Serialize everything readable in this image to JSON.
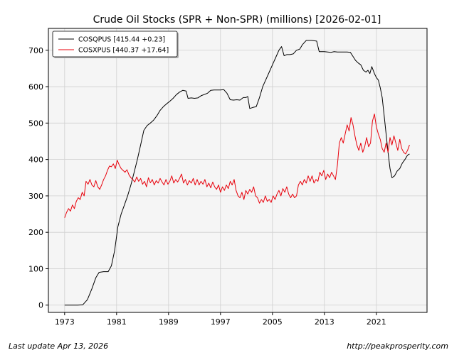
{
  "footer": {
    "last_update": "Last update Apr 13, 2026",
    "source_url": "http://peakprosperity.com"
  },
  "chart_data": {
    "type": "line",
    "title": "Crude Oil Stocks (SPR + Non-SPR) (millions) [2026-02-01]",
    "xlabel": "",
    "ylabel": "",
    "xlim": [
      1970.5,
      2028.8
    ],
    "ylim": [
      -20,
      760
    ],
    "x_ticks": [
      1973,
      1981,
      1989,
      1997,
      2005,
      2013,
      2021
    ],
    "y_ticks": [
      0,
      100,
      200,
      300,
      400,
      500,
      600,
      700
    ],
    "grid": true,
    "legend_position": "top-left",
    "colors": {
      "plot_background": "#f5f5f5",
      "grid": "#d0d0d0"
    },
    "series": [
      {
        "name": "COSQPUS [415.44 +0.23]",
        "color": "#000000",
        "points": [
          [
            1973.0,
            0
          ],
          [
            1975.0,
            0
          ],
          [
            1975.8,
            1
          ],
          [
            1976.5,
            15
          ],
          [
            1977.2,
            45
          ],
          [
            1977.8,
            75
          ],
          [
            1978.3,
            90
          ],
          [
            1979.0,
            92
          ],
          [
            1979.7,
            92
          ],
          [
            1980.2,
            108
          ],
          [
            1980.7,
            150
          ],
          [
            1981.2,
            215
          ],
          [
            1981.7,
            250
          ],
          [
            1982.2,
            275
          ],
          [
            1982.7,
            300
          ],
          [
            1983.2,
            330
          ],
          [
            1983.7,
            365
          ],
          [
            1984.2,
            400
          ],
          [
            1984.7,
            440
          ],
          [
            1985.2,
            480
          ],
          [
            1985.7,
            493
          ],
          [
            1986.2,
            500
          ],
          [
            1986.7,
            508
          ],
          [
            1987.2,
            520
          ],
          [
            1987.7,
            535
          ],
          [
            1988.2,
            545
          ],
          [
            1988.7,
            553
          ],
          [
            1989.2,
            560
          ],
          [
            1989.7,
            568
          ],
          [
            1990.2,
            578
          ],
          [
            1990.7,
            585
          ],
          [
            1991.2,
            590
          ],
          [
            1991.7,
            588
          ],
          [
            1992.0,
            568
          ],
          [
            1992.5,
            569
          ],
          [
            1993.0,
            568
          ],
          [
            1993.5,
            569
          ],
          [
            1994.0,
            575
          ],
          [
            1995.0,
            582
          ],
          [
            1995.5,
            590
          ],
          [
            1996.0,
            591
          ],
          [
            1997.0,
            591
          ],
          [
            1997.5,
            592
          ],
          [
            1998.0,
            582
          ],
          [
            1998.5,
            564
          ],
          [
            1999.0,
            563
          ],
          [
            1999.5,
            564
          ],
          [
            2000.0,
            563
          ],
          [
            2000.5,
            570
          ],
          [
            2000.9,
            570
          ],
          [
            2001.2,
            573
          ],
          [
            2001.5,
            540
          ],
          [
            2002.0,
            543
          ],
          [
            2002.5,
            545
          ],
          [
            2003.0,
            570
          ],
          [
            2003.5,
            600
          ],
          [
            2004.0,
            620
          ],
          [
            2004.5,
            640
          ],
          [
            2005.0,
            660
          ],
          [
            2005.5,
            680
          ],
          [
            2006.0,
            700
          ],
          [
            2006.4,
            710
          ],
          [
            2006.8,
            685
          ],
          [
            2007.2,
            688
          ],
          [
            2007.7,
            688
          ],
          [
            2008.2,
            690
          ],
          [
            2008.7,
            700
          ],
          [
            2009.2,
            703
          ],
          [
            2009.6,
            715
          ],
          [
            2010.2,
            727
          ],
          [
            2011.0,
            727
          ],
          [
            2011.8,
            725
          ],
          [
            2012.2,
            696
          ],
          [
            2013.0,
            696
          ],
          [
            2014.0,
            694
          ],
          [
            2014.5,
            696
          ],
          [
            2015.0,
            695
          ],
          [
            2016.0,
            695
          ],
          [
            2016.5,
            695
          ],
          [
            2017.0,
            694
          ],
          [
            2017.4,
            683
          ],
          [
            2017.8,
            672
          ],
          [
            2018.2,
            665
          ],
          [
            2018.6,
            660
          ],
          [
            2019.0,
            645
          ],
          [
            2019.4,
            640
          ],
          [
            2019.7,
            645
          ],
          [
            2020.0,
            636
          ],
          [
            2020.3,
            655
          ],
          [
            2020.7,
            636
          ],
          [
            2021.0,
            625
          ],
          [
            2021.3,
            618
          ],
          [
            2021.6,
            597
          ],
          [
            2021.9,
            570
          ],
          [
            2022.2,
            520
          ],
          [
            2022.5,
            470
          ],
          [
            2022.8,
            420
          ],
          [
            2023.1,
            375
          ],
          [
            2023.4,
            350
          ],
          [
            2023.8,
            355
          ],
          [
            2024.2,
            368
          ],
          [
            2024.6,
            375
          ],
          [
            2025.0,
            390
          ],
          [
            2025.4,
            400
          ],
          [
            2025.8,
            412
          ],
          [
            2026.1,
            415
          ]
        ]
      },
      {
        "name": "COSXPUS [440.37 +17.64]",
        "color": "#e8000b",
        "points": [
          [
            1973.0,
            240
          ],
          [
            1973.3,
            255
          ],
          [
            1973.6,
            265
          ],
          [
            1973.9,
            258
          ],
          [
            1974.2,
            275
          ],
          [
            1974.5,
            265
          ],
          [
            1974.8,
            285
          ],
          [
            1975.1,
            295
          ],
          [
            1975.4,
            290
          ],
          [
            1975.7,
            310
          ],
          [
            1976.0,
            300
          ],
          [
            1976.3,
            340
          ],
          [
            1976.6,
            332
          ],
          [
            1976.9,
            345
          ],
          [
            1977.2,
            330
          ],
          [
            1977.5,
            325
          ],
          [
            1977.8,
            342
          ],
          [
            1978.1,
            325
          ],
          [
            1978.4,
            318
          ],
          [
            1978.7,
            330
          ],
          [
            1979.0,
            345
          ],
          [
            1979.3,
            355
          ],
          [
            1979.6,
            370
          ],
          [
            1979.9,
            382
          ],
          [
            1980.2,
            380
          ],
          [
            1980.5,
            388
          ],
          [
            1980.8,
            375
          ],
          [
            1981.1,
            398
          ],
          [
            1981.4,
            385
          ],
          [
            1981.7,
            375
          ],
          [
            1982.0,
            370
          ],
          [
            1982.3,
            365
          ],
          [
            1982.6,
            372
          ],
          [
            1982.9,
            358
          ],
          [
            1983.2,
            350
          ],
          [
            1983.5,
            345
          ],
          [
            1983.8,
            338
          ],
          [
            1984.1,
            352
          ],
          [
            1984.4,
            340
          ],
          [
            1984.7,
            348
          ],
          [
            1985.0,
            332
          ],
          [
            1985.3,
            340
          ],
          [
            1985.6,
            325
          ],
          [
            1985.9,
            350
          ],
          [
            1986.2,
            336
          ],
          [
            1986.5,
            345
          ],
          [
            1986.8,
            330
          ],
          [
            1987.1,
            342
          ],
          [
            1987.4,
            335
          ],
          [
            1987.7,
            348
          ],
          [
            1988.0,
            338
          ],
          [
            1988.3,
            330
          ],
          [
            1988.6,
            345
          ],
          [
            1988.9,
            332
          ],
          [
            1989.2,
            340
          ],
          [
            1989.5,
            355
          ],
          [
            1989.8,
            335
          ],
          [
            1990.1,
            345
          ],
          [
            1990.4,
            338
          ],
          [
            1990.7,
            348
          ],
          [
            1991.0,
            360
          ],
          [
            1991.3,
            335
          ],
          [
            1991.6,
            345
          ],
          [
            1991.9,
            330
          ],
          [
            1992.2,
            342
          ],
          [
            1992.5,
            335
          ],
          [
            1992.8,
            348
          ],
          [
            1993.1,
            330
          ],
          [
            1993.4,
            345
          ],
          [
            1993.7,
            330
          ],
          [
            1994.0,
            340
          ],
          [
            1994.3,
            332
          ],
          [
            1994.6,
            345
          ],
          [
            1994.9,
            325
          ],
          [
            1995.2,
            335
          ],
          [
            1995.5,
            322
          ],
          [
            1995.8,
            338
          ],
          [
            1996.1,
            325
          ],
          [
            1996.4,
            318
          ],
          [
            1996.7,
            330
          ],
          [
            1997.0,
            310
          ],
          [
            1997.3,
            325
          ],
          [
            1997.6,
            315
          ],
          [
            1997.9,
            330
          ],
          [
            1998.2,
            320
          ],
          [
            1998.5,
            340
          ],
          [
            1998.8,
            330
          ],
          [
            1999.1,
            345
          ],
          [
            1999.4,
            315
          ],
          [
            1999.7,
            300
          ],
          [
            2000.0,
            295
          ],
          [
            2000.3,
            310
          ],
          [
            2000.6,
            290
          ],
          [
            2000.9,
            315
          ],
          [
            2001.2,
            305
          ],
          [
            2001.5,
            318
          ],
          [
            2001.8,
            310
          ],
          [
            2002.1,
            325
          ],
          [
            2002.4,
            300
          ],
          [
            2002.7,
            295
          ],
          [
            2003.0,
            280
          ],
          [
            2003.3,
            290
          ],
          [
            2003.6,
            282
          ],
          [
            2003.9,
            300
          ],
          [
            2004.2,
            285
          ],
          [
            2004.5,
            290
          ],
          [
            2004.8,
            282
          ],
          [
            2005.1,
            300
          ],
          [
            2005.4,
            290
          ],
          [
            2005.7,
            305
          ],
          [
            2006.0,
            315
          ],
          [
            2006.3,
            300
          ],
          [
            2006.6,
            320
          ],
          [
            2006.9,
            310
          ],
          [
            2007.2,
            325
          ],
          [
            2007.5,
            305
          ],
          [
            2007.8,
            295
          ],
          [
            2008.1,
            305
          ],
          [
            2008.4,
            295
          ],
          [
            2008.7,
            300
          ],
          [
            2009.0,
            330
          ],
          [
            2009.3,
            340
          ],
          [
            2009.6,
            330
          ],
          [
            2009.9,
            345
          ],
          [
            2010.2,
            335
          ],
          [
            2010.5,
            355
          ],
          [
            2010.8,
            340
          ],
          [
            2011.1,
            355
          ],
          [
            2011.4,
            335
          ],
          [
            2011.7,
            345
          ],
          [
            2012.0,
            340
          ],
          [
            2012.3,
            365
          ],
          [
            2012.6,
            355
          ],
          [
            2012.9,
            370
          ],
          [
            2013.2,
            345
          ],
          [
            2013.5,
            360
          ],
          [
            2013.8,
            350
          ],
          [
            2014.1,
            365
          ],
          [
            2014.4,
            355
          ],
          [
            2014.7,
            345
          ],
          [
            2015.0,
            385
          ],
          [
            2015.3,
            445
          ],
          [
            2015.6,
            460
          ],
          [
            2015.9,
            445
          ],
          [
            2016.2,
            470
          ],
          [
            2016.5,
            495
          ],
          [
            2016.8,
            478
          ],
          [
            2017.1,
            515
          ],
          [
            2017.4,
            495
          ],
          [
            2017.7,
            465
          ],
          [
            2018.0,
            440
          ],
          [
            2018.3,
            425
          ],
          [
            2018.6,
            445
          ],
          [
            2018.9,
            420
          ],
          [
            2019.2,
            435
          ],
          [
            2019.5,
            460
          ],
          [
            2019.8,
            435
          ],
          [
            2020.1,
            445
          ],
          [
            2020.4,
            505
          ],
          [
            2020.7,
            525
          ],
          [
            2021.0,
            490
          ],
          [
            2021.3,
            470
          ],
          [
            2021.6,
            455
          ],
          [
            2021.9,
            430
          ],
          [
            2022.2,
            420
          ],
          [
            2022.5,
            445
          ],
          [
            2022.8,
            420
          ],
          [
            2023.1,
            460
          ],
          [
            2023.4,
            440
          ],
          [
            2023.7,
            465
          ],
          [
            2024.0,
            445
          ],
          [
            2024.3,
            425
          ],
          [
            2024.6,
            455
          ],
          [
            2024.9,
            430
          ],
          [
            2025.2,
            420
          ],
          [
            2025.5,
            415
          ],
          [
            2025.8,
            425
          ],
          [
            2026.1,
            440
          ]
        ]
      }
    ]
  }
}
